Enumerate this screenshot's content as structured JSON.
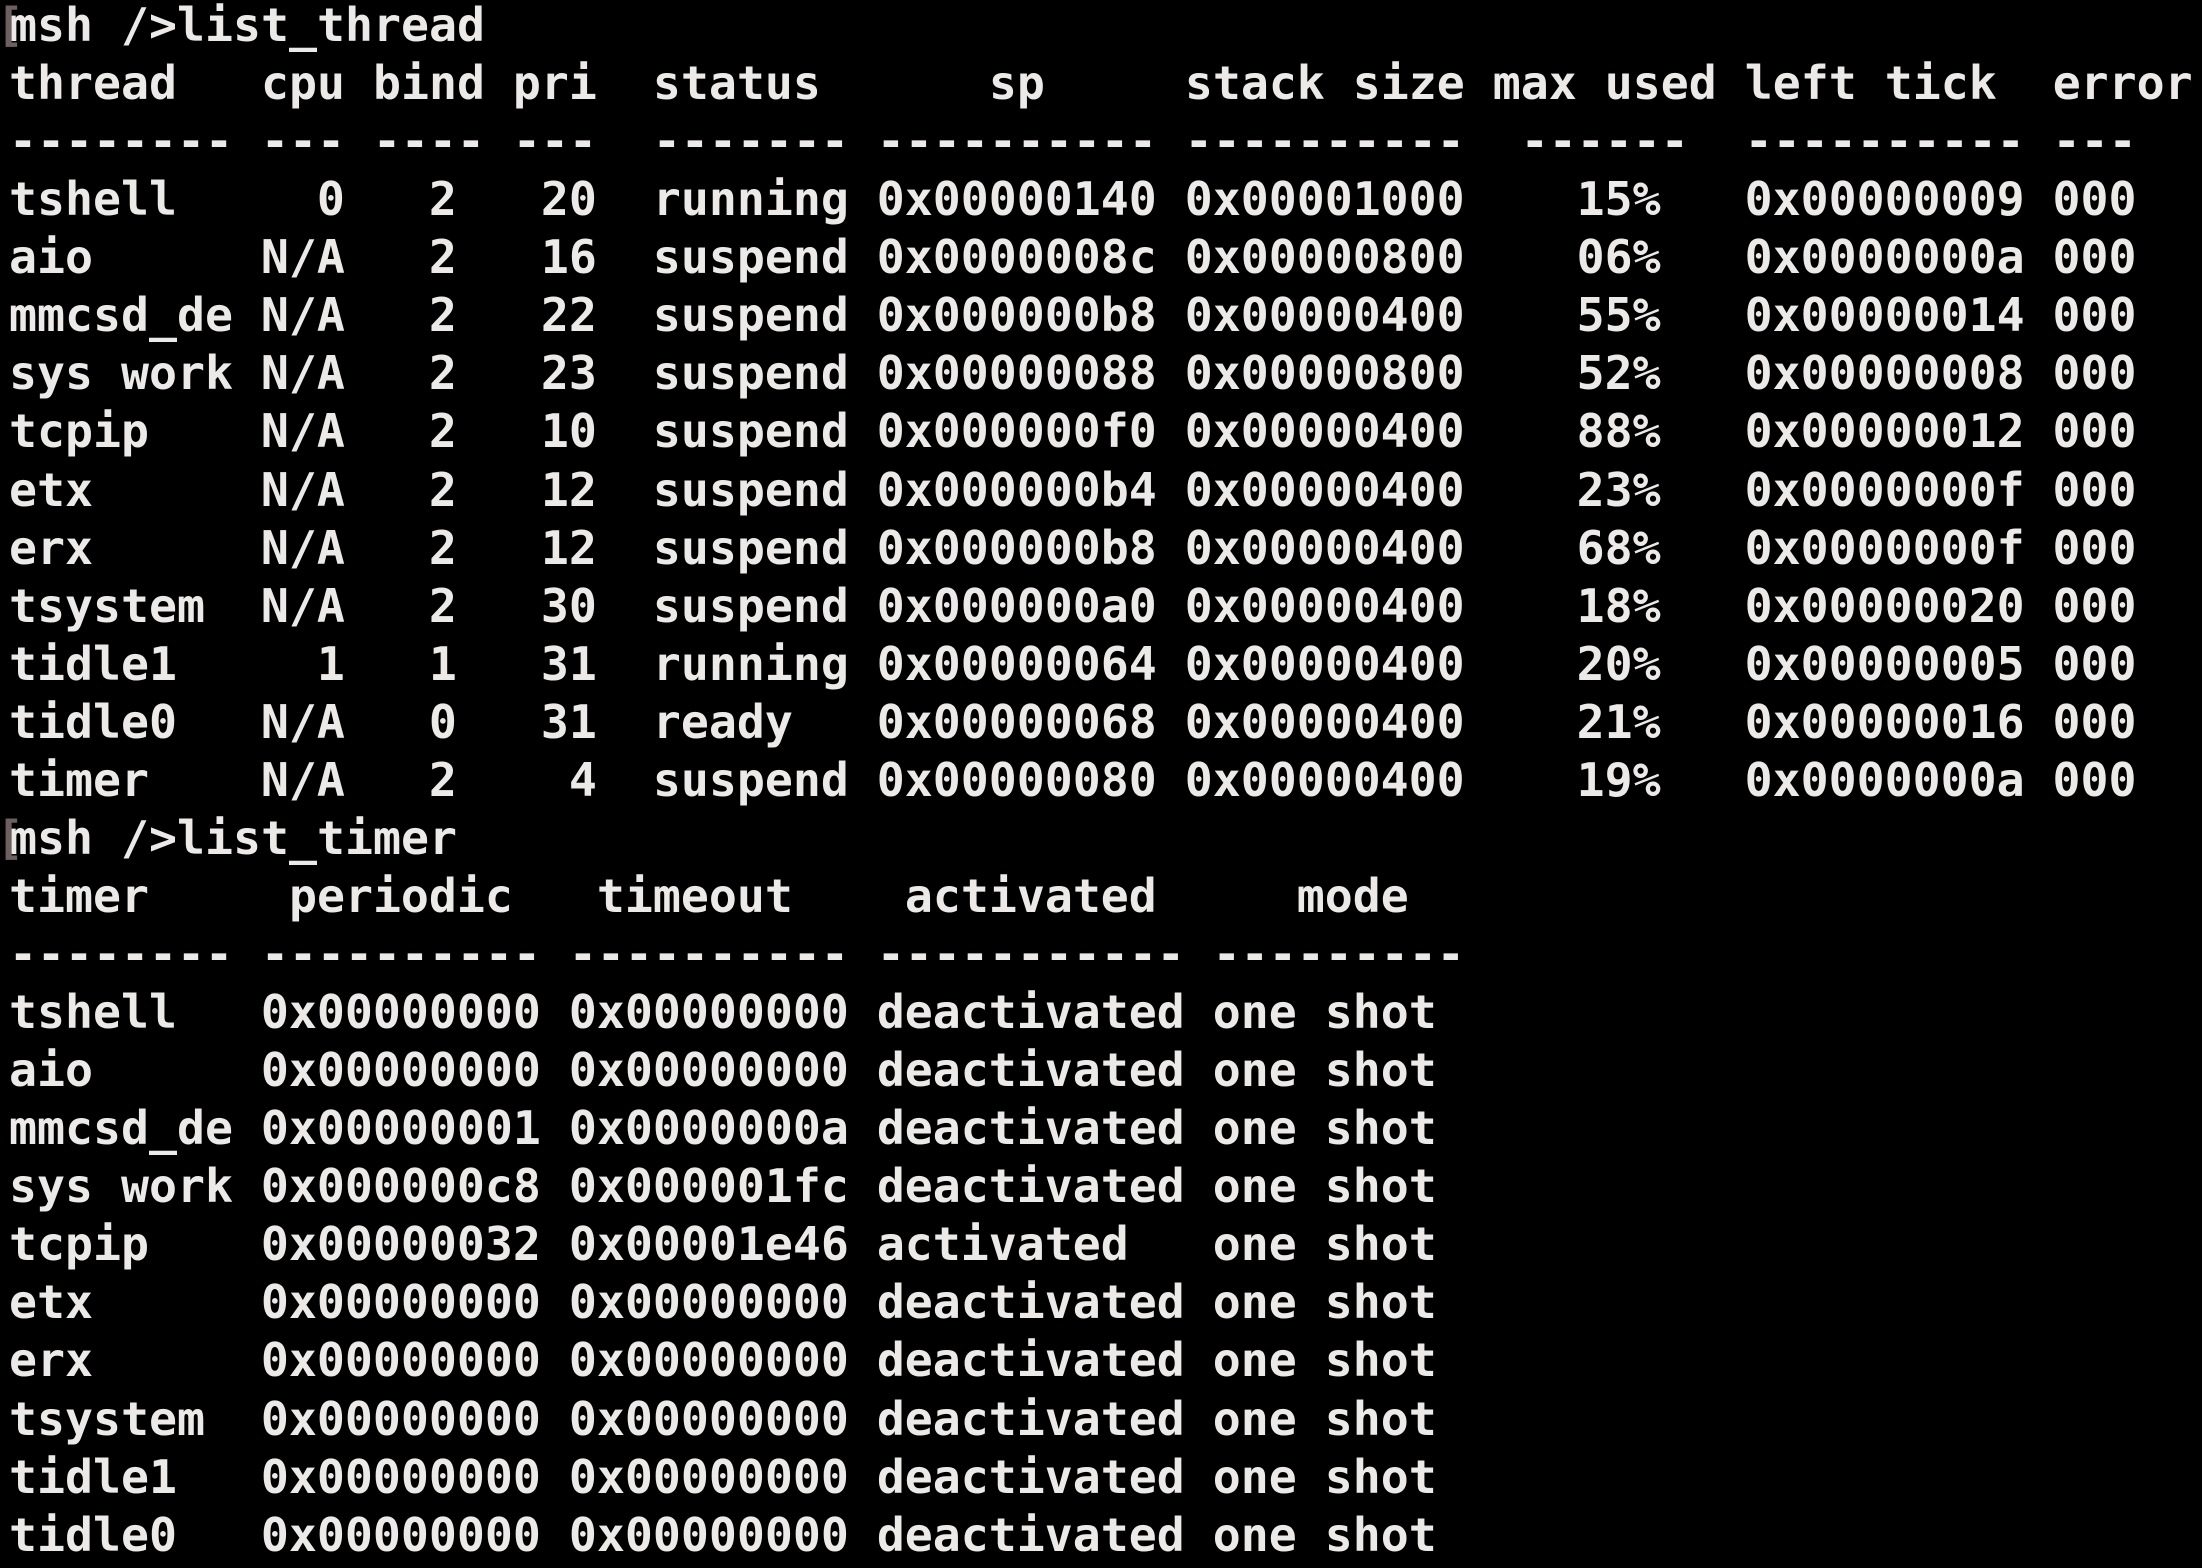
{
  "terminal": {
    "bg_color": "#000000",
    "fg_color": "#eceae8",
    "artifact_color": "#6e5f60",
    "artifact_glyph": "["
  },
  "prompt": "msh />",
  "commands": {
    "list_thread": "list_thread",
    "list_timer": "list_timer"
  },
  "thread_table": {
    "headers": [
      "thread",
      "cpu",
      "bind",
      "pri",
      "status",
      "sp",
      "stack size",
      "max used",
      "left tick",
      "error"
    ],
    "divider": "-------- --- ---- ---  ------- ---------- ----------  ------  ---------- ---",
    "rows": [
      {
        "name": "tshell",
        "cpu": "0",
        "bind": "2",
        "pri": "20",
        "status": "running",
        "sp": "0x00000140",
        "stack_size": "0x00001000",
        "max_used": "15%",
        "left_tick": "0x00000009",
        "error": "000"
      },
      {
        "name": "aio",
        "cpu": "N/A",
        "bind": "2",
        "pri": "16",
        "status": "suspend",
        "sp": "0x0000008c",
        "stack_size": "0x00000800",
        "max_used": "06%",
        "left_tick": "0x0000000a",
        "error": "000"
      },
      {
        "name": "mmcsd_de",
        "cpu": "N/A",
        "bind": "2",
        "pri": "22",
        "status": "suspend",
        "sp": "0x000000b8",
        "stack_size": "0x00000400",
        "max_used": "55%",
        "left_tick": "0x00000014",
        "error": "000"
      },
      {
        "name": "sys work",
        "cpu": "N/A",
        "bind": "2",
        "pri": "23",
        "status": "suspend",
        "sp": "0x00000088",
        "stack_size": "0x00000800",
        "max_used": "52%",
        "left_tick": "0x00000008",
        "error": "000"
      },
      {
        "name": "tcpip",
        "cpu": "N/A",
        "bind": "2",
        "pri": "10",
        "status": "suspend",
        "sp": "0x000000f0",
        "stack_size": "0x00000400",
        "max_used": "88%",
        "left_tick": "0x00000012",
        "error": "000"
      },
      {
        "name": "etx",
        "cpu": "N/A",
        "bind": "2",
        "pri": "12",
        "status": "suspend",
        "sp": "0x000000b4",
        "stack_size": "0x00000400",
        "max_used": "23%",
        "left_tick": "0x0000000f",
        "error": "000"
      },
      {
        "name": "erx",
        "cpu": "N/A",
        "bind": "2",
        "pri": "12",
        "status": "suspend",
        "sp": "0x000000b8",
        "stack_size": "0x00000400",
        "max_used": "68%",
        "left_tick": "0x0000000f",
        "error": "000"
      },
      {
        "name": "tsystem",
        "cpu": "N/A",
        "bind": "2",
        "pri": "30",
        "status": "suspend",
        "sp": "0x000000a0",
        "stack_size": "0x00000400",
        "max_used": "18%",
        "left_tick": "0x00000020",
        "error": "000"
      },
      {
        "name": "tidle1",
        "cpu": "1",
        "bind": "1",
        "pri": "31",
        "status": "running",
        "sp": "0x00000064",
        "stack_size": "0x00000400",
        "max_used": "20%",
        "left_tick": "0x00000005",
        "error": "000"
      },
      {
        "name": "tidle0",
        "cpu": "N/A",
        "bind": "0",
        "pri": "31",
        "status": "ready",
        "sp": "0x00000068",
        "stack_size": "0x00000400",
        "max_used": "21%",
        "left_tick": "0x00000016",
        "error": "000"
      },
      {
        "name": "timer",
        "cpu": "N/A",
        "bind": "2",
        "pri": "4",
        "status": "suspend",
        "sp": "0x00000080",
        "stack_size": "0x00000400",
        "max_used": "19%",
        "left_tick": "0x0000000a",
        "error": "000"
      }
    ]
  },
  "timer_table": {
    "headers": [
      "timer",
      "periodic",
      "timeout",
      "activated",
      "mode"
    ],
    "divider": "-------- ---------- ---------- ----------- ---------",
    "rows": [
      {
        "name": "tshell",
        "periodic": "0x00000000",
        "timeout": "0x00000000",
        "activated": "deactivated",
        "mode": "one shot"
      },
      {
        "name": "aio",
        "periodic": "0x00000000",
        "timeout": "0x00000000",
        "activated": "deactivated",
        "mode": "one shot"
      },
      {
        "name": "mmcsd_de",
        "periodic": "0x00000001",
        "timeout": "0x0000000a",
        "activated": "deactivated",
        "mode": "one shot"
      },
      {
        "name": "sys work",
        "periodic": "0x000000c8",
        "timeout": "0x000001fc",
        "activated": "deactivated",
        "mode": "one shot"
      },
      {
        "name": "tcpip",
        "periodic": "0x00000032",
        "timeout": "0x00001e46",
        "activated": "activated",
        "mode": "one shot"
      },
      {
        "name": "etx",
        "periodic": "0x00000000",
        "timeout": "0x00000000",
        "activated": "deactivated",
        "mode": "one shot"
      },
      {
        "name": "erx",
        "periodic": "0x00000000",
        "timeout": "0x00000000",
        "activated": "deactivated",
        "mode": "one shot"
      },
      {
        "name": "tsystem",
        "periodic": "0x00000000",
        "timeout": "0x00000000",
        "activated": "deactivated",
        "mode": "one shot"
      },
      {
        "name": "tidle1",
        "periodic": "0x00000000",
        "timeout": "0x00000000",
        "activated": "deactivated",
        "mode": "one shot"
      },
      {
        "name": "tidle0",
        "periodic": "0x00000000",
        "timeout": "0x00000000",
        "activated": "deactivated",
        "mode": "one shot"
      }
    ]
  }
}
